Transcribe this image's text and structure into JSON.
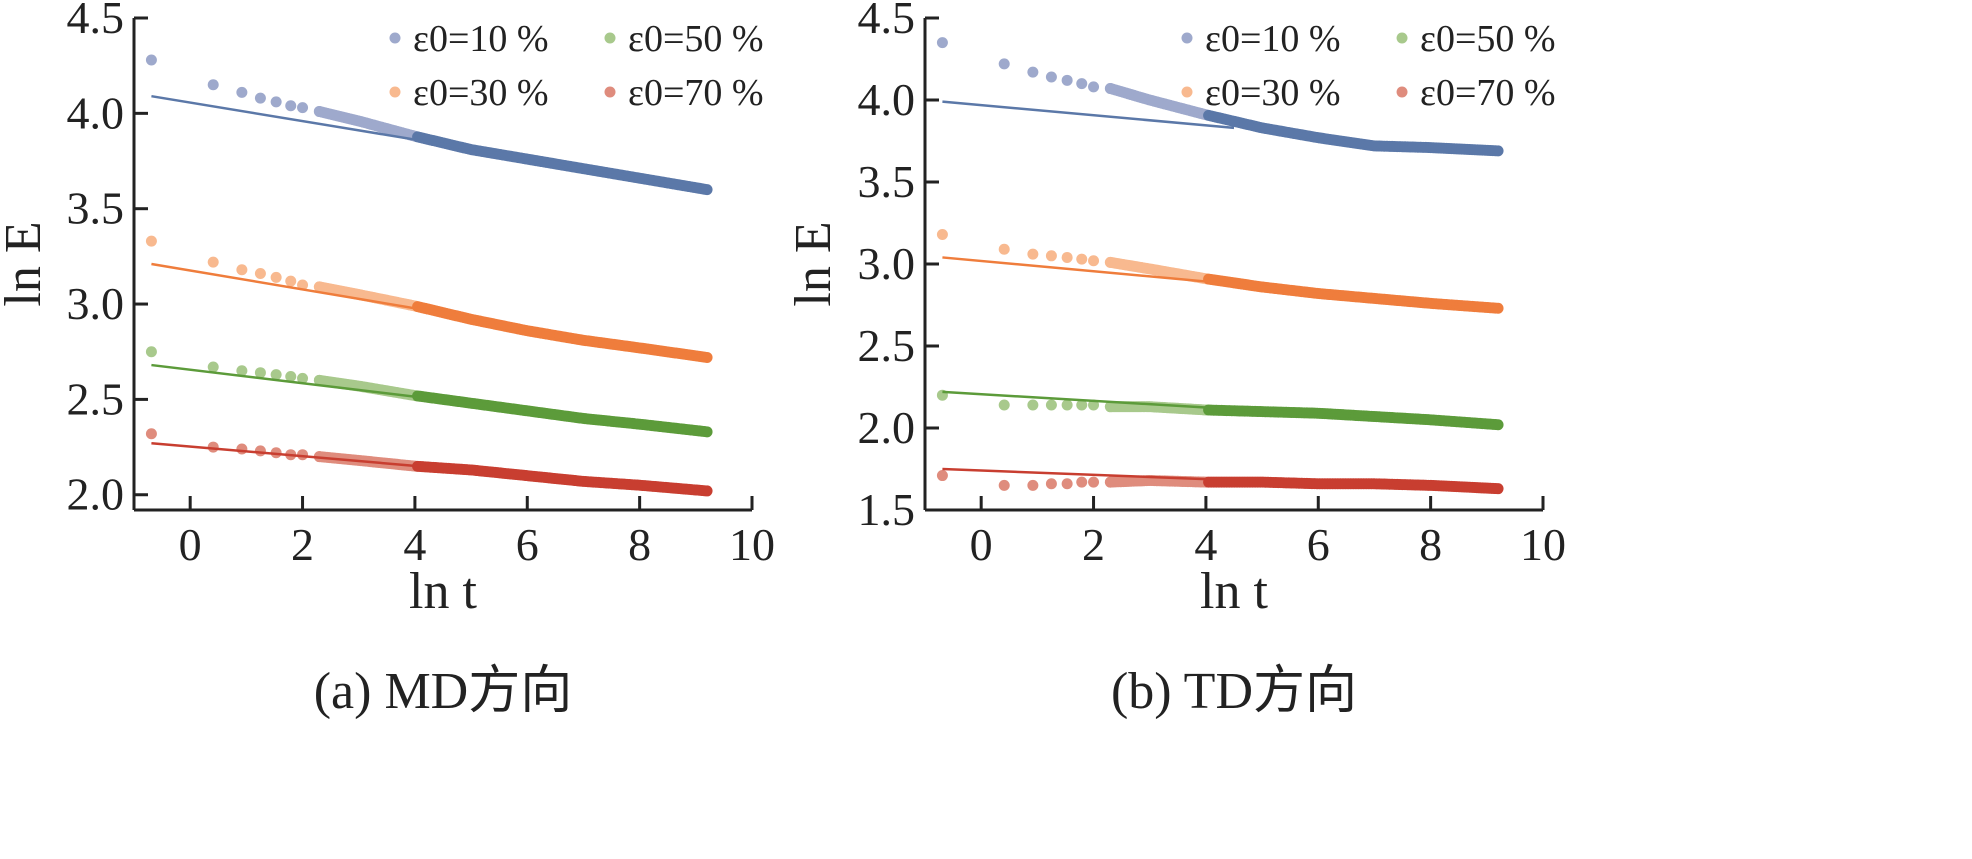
{
  "chart_data": [
    {
      "type": "scatter",
      "caption": "(a) MD方向",
      "xlabel": "ln t",
      "ylabel": "ln E",
      "xlim": [
        -1,
        10
      ],
      "ylim": [
        1.92,
        4.5
      ],
      "xticks": [
        0,
        2,
        4,
        6,
        8,
        10
      ],
      "yticks": [
        2.0,
        2.5,
        3.0,
        3.5,
        4.0,
        4.5
      ],
      "ytick_labels": [
        "2.0",
        "2.5",
        "3.0",
        "3.5",
        "4.0",
        "4.5"
      ],
      "legend": "top-right, two columns",
      "series": [
        {
          "name": "ε0=10 %",
          "color": "#5b78a8",
          "lightColor": "#9ea9cc",
          "points": [
            [
              -0.69,
              4.28
            ],
            [
              0.41,
              4.15
            ],
            [
              0.92,
              4.11
            ],
            [
              1.25,
              4.08
            ],
            [
              1.53,
              4.06
            ],
            [
              1.79,
              4.04
            ],
            [
              2.0,
              4.03
            ],
            [
              2.3,
              4.01
            ],
            [
              3.0,
              3.96
            ],
            [
              4.0,
              3.88
            ],
            [
              5.0,
              3.81
            ],
            [
              6.0,
              3.76
            ],
            [
              7.0,
              3.71
            ],
            [
              8.0,
              3.66
            ],
            [
              9.2,
              3.6
            ]
          ],
          "fit": [
            [
              -0.69,
              4.09
            ],
            [
              9.2,
              3.61
            ]
          ]
        },
        {
          "name": "ε0=30 %",
          "color": "#ef7d3c",
          "lightColor": "#f8b98f",
          "points": [
            [
              -0.69,
              3.33
            ],
            [
              0.41,
              3.22
            ],
            [
              0.92,
              3.18
            ],
            [
              1.25,
              3.16
            ],
            [
              1.53,
              3.14
            ],
            [
              1.79,
              3.12
            ],
            [
              2.0,
              3.1
            ],
            [
              2.3,
              3.09
            ],
            [
              3.0,
              3.05
            ],
            [
              4.0,
              2.99
            ],
            [
              5.0,
              2.92
            ],
            [
              6.0,
              2.86
            ],
            [
              7.0,
              2.81
            ],
            [
              8.0,
              2.77
            ],
            [
              9.2,
              2.72
            ]
          ],
          "fit": [
            [
              -0.69,
              3.21
            ],
            [
              9.2,
              2.72
            ]
          ]
        },
        {
          "name": "ε0=50 %",
          "color": "#5c9b3a",
          "lightColor": "#a8c98c",
          "points": [
            [
              -0.69,
              2.75
            ],
            [
              0.41,
              2.67
            ],
            [
              0.92,
              2.65
            ],
            [
              1.25,
              2.64
            ],
            [
              1.53,
              2.63
            ],
            [
              1.79,
              2.62
            ],
            [
              2.0,
              2.61
            ],
            [
              2.3,
              2.6
            ],
            [
              3.0,
              2.57
            ],
            [
              4.0,
              2.52
            ],
            [
              5.0,
              2.48
            ],
            [
              6.0,
              2.44
            ],
            [
              7.0,
              2.4
            ],
            [
              8.0,
              2.37
            ],
            [
              9.2,
              2.33
            ]
          ],
          "fit": [
            [
              -0.69,
              2.68
            ],
            [
              9.2,
              2.33
            ]
          ]
        },
        {
          "name": "ε0=70 %",
          "color": "#c83e30",
          "lightColor": "#df8c7d",
          "points": [
            [
              -0.69,
              2.32
            ],
            [
              0.41,
              2.25
            ],
            [
              0.92,
              2.24
            ],
            [
              1.25,
              2.23
            ],
            [
              1.53,
              2.22
            ],
            [
              1.79,
              2.21
            ],
            [
              2.0,
              2.21
            ],
            [
              2.3,
              2.2
            ],
            [
              3.0,
              2.18
            ],
            [
              4.0,
              2.15
            ],
            [
              5.0,
              2.13
            ],
            [
              6.0,
              2.1
            ],
            [
              7.0,
              2.07
            ],
            [
              8.0,
              2.05
            ],
            [
              9.2,
              2.02
            ]
          ],
          "fit": [
            [
              -0.69,
              2.27
            ],
            [
              9.2,
              2.02
            ]
          ]
        }
      ]
    },
    {
      "type": "scatter",
      "caption": "(b) TD方向",
      "xlabel": "ln t",
      "ylabel": "ln E",
      "xlim": [
        -1,
        10
      ],
      "ylim": [
        1.5,
        4.5
      ],
      "xticks": [
        0,
        2,
        4,
        6,
        8,
        10
      ],
      "yticks": [
        1.5,
        2.0,
        2.5,
        3.0,
        3.5,
        4.0,
        4.5
      ],
      "ytick_labels": [
        "1.5",
        "2.0",
        "2.5",
        "3.0",
        "3.5",
        "4.0",
        "4.5"
      ],
      "legend": "top-right, two columns",
      "series": [
        {
          "name": "ε0=10 %",
          "color": "#5b78a8",
          "lightColor": "#9ea9cc",
          "points": [
            [
              -0.69,
              4.35
            ],
            [
              0.41,
              4.22
            ],
            [
              0.92,
              4.17
            ],
            [
              1.25,
              4.14
            ],
            [
              1.53,
              4.12
            ],
            [
              1.79,
              4.1
            ],
            [
              2.0,
              4.08
            ],
            [
              2.3,
              4.07
            ],
            [
              3.0,
              4.0
            ],
            [
              4.0,
              3.91
            ],
            [
              5.0,
              3.83
            ],
            [
              6.0,
              3.77
            ],
            [
              7.0,
              3.72
            ],
            [
              8.0,
              3.71
            ],
            [
              9.2,
              3.69
            ]
          ],
          "fit": [
            [
              -0.69,
              3.99
            ],
            [
              4.5,
              3.83
            ]
          ]
        },
        {
          "name": "ε0=30 %",
          "color": "#ef7d3c",
          "lightColor": "#f8b98f",
          "points": [
            [
              -0.69,
              3.18
            ],
            [
              0.41,
              3.09
            ],
            [
              0.92,
              3.06
            ],
            [
              1.25,
              3.05
            ],
            [
              1.53,
              3.04
            ],
            [
              1.79,
              3.03
            ],
            [
              2.0,
              3.02
            ],
            [
              2.3,
              3.01
            ],
            [
              3.0,
              2.97
            ],
            [
              4.0,
              2.91
            ],
            [
              5.0,
              2.86
            ],
            [
              6.0,
              2.82
            ],
            [
              7.0,
              2.79
            ],
            [
              8.0,
              2.76
            ],
            [
              9.2,
              2.73
            ]
          ],
          "fit": [
            [
              -0.69,
              3.04
            ],
            [
              9.2,
              2.73
            ]
          ]
        },
        {
          "name": "ε0=50 %",
          "color": "#5c9b3a",
          "lightColor": "#a8c98c",
          "points": [
            [
              -0.69,
              2.2
            ],
            [
              0.41,
              2.14
            ],
            [
              0.92,
              2.14
            ],
            [
              1.25,
              2.14
            ],
            [
              1.53,
              2.14
            ],
            [
              1.79,
              2.14
            ],
            [
              2.0,
              2.14
            ],
            [
              2.3,
              2.13
            ],
            [
              3.0,
              2.13
            ],
            [
              4.0,
              2.11
            ],
            [
              5.0,
              2.1
            ],
            [
              6.0,
              2.09
            ],
            [
              7.0,
              2.07
            ],
            [
              8.0,
              2.05
            ],
            [
              9.2,
              2.02
            ]
          ],
          "fit": [
            [
              -0.69,
              2.22
            ],
            [
              9.2,
              2.02
            ]
          ]
        },
        {
          "name": "ε0=70 %",
          "color": "#c83e30",
          "lightColor": "#df8c7d",
          "points": [
            [
              -0.69,
              1.71
            ],
            [
              0.41,
              1.65
            ],
            [
              0.92,
              1.65
            ],
            [
              1.25,
              1.66
            ],
            [
              1.53,
              1.66
            ],
            [
              1.79,
              1.67
            ],
            [
              2.0,
              1.67
            ],
            [
              2.3,
              1.67
            ],
            [
              3.0,
              1.68
            ],
            [
              4.0,
              1.67
            ],
            [
              5.0,
              1.67
            ],
            [
              6.0,
              1.66
            ],
            [
              7.0,
              1.66
            ],
            [
              8.0,
              1.65
            ],
            [
              9.2,
              1.63
            ]
          ],
          "fit": [
            [
              -0.69,
              1.75
            ],
            [
              9.2,
              1.62
            ]
          ]
        }
      ]
    }
  ]
}
